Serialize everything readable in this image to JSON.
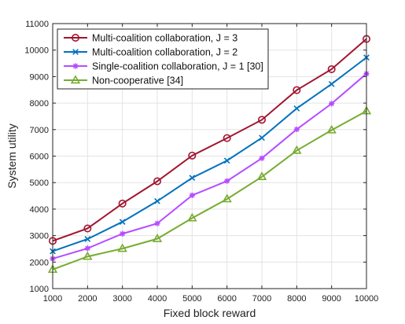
{
  "chart_data": {
    "type": "line",
    "xlabel": "Fixed block reward",
    "ylabel": "System utility",
    "x": [
      1000,
      2000,
      3000,
      4000,
      5000,
      6000,
      7000,
      8000,
      9000,
      10000
    ],
    "xlim": [
      1000,
      10000
    ],
    "ylim": [
      1000,
      11000
    ],
    "xticks": [
      1000,
      2000,
      3000,
      4000,
      5000,
      6000,
      7000,
      8000,
      9000,
      10000
    ],
    "yticks": [
      1000,
      2000,
      3000,
      4000,
      5000,
      6000,
      7000,
      8000,
      9000,
      10000,
      11000
    ],
    "grid": true,
    "legend_position": "top-left",
    "series": [
      {
        "name": "Multi-coalition collaboration, J = 3",
        "color": "#a2142f",
        "marker": "circle",
        "values": [
          2800,
          3270,
          4210,
          5050,
          6020,
          6680,
          7370,
          8490,
          9280,
          10420
        ]
      },
      {
        "name": "Multi-coalition collaboration, J = 2",
        "color": "#0072bd",
        "marker": "x",
        "values": [
          2410,
          2870,
          3520,
          4300,
          5180,
          5830,
          6690,
          7800,
          8720,
          9720
        ]
      },
      {
        "name": "Single-coalition collaboration, J = 1 [30]",
        "color": "#b64cff",
        "marker": "asterisk",
        "values": [
          2130,
          2520,
          3070,
          3460,
          4520,
          5060,
          5920,
          7010,
          7980,
          9110
        ]
      },
      {
        "name": "Non-cooperative [34]",
        "color": "#77ac30",
        "marker": "triangle",
        "values": [
          1720,
          2210,
          2510,
          2880,
          3660,
          4380,
          5220,
          6210,
          6980,
          7700
        ]
      }
    ]
  }
}
